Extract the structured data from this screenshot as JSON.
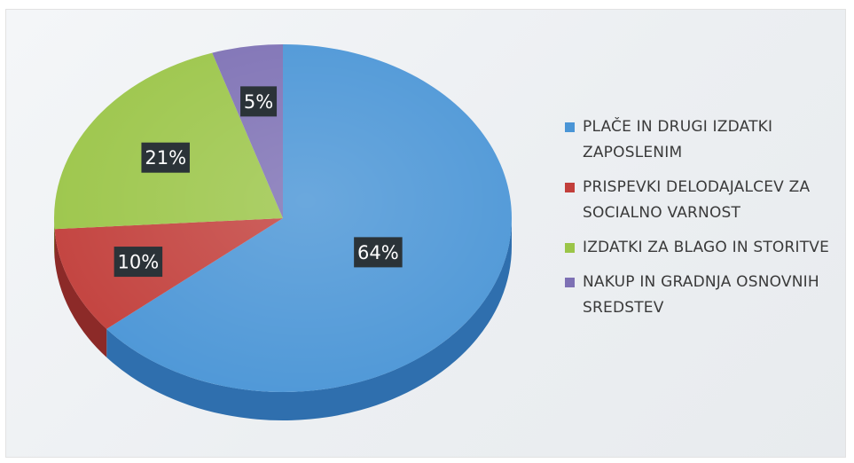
{
  "chart_data": {
    "type": "pie",
    "style": "3d",
    "legend_position": "right",
    "slices": [
      {
        "label": "PLAČE IN DRUGI IZDATKI ZAPOSLENIM",
        "value": 64,
        "display": "64%",
        "color": "#4a95d6",
        "side_color": "#2f6fae"
      },
      {
        "label": "PRISPEVKI DELODAJALCEV ZA SOCIALNO VARNOST",
        "value": 10,
        "display": "10%",
        "color": "#c23f3b",
        "side_color": "#8c2a28"
      },
      {
        "label": "IZDATKI ZA BLAGO IN STORITVE",
        "value": 21,
        "display": "21%",
        "color": "#9bc548",
        "side_color": "#6f9430"
      },
      {
        "label": "NAKUP IN GRADNJA OSNOVNIH SREDSTEV",
        "value": 5,
        "display": "5%",
        "color": "#7d70b4",
        "side_color": "#574c88"
      }
    ]
  }
}
